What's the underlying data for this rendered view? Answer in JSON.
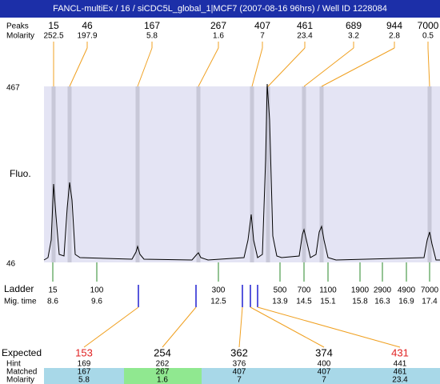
{
  "header": {
    "title": "FANCL-multiEx / 16 / siCDC5L_global_1|MCF7 (2007-08-16 96hrs) / Well ID 1228084"
  },
  "peaks": {
    "label": "Peaks",
    "molarity_label": "Molarity",
    "sizes": [
      "15",
      "46",
      "167",
      "267",
      "407",
      "461",
      "689",
      "944",
      "7000"
    ],
    "molarity": [
      "252.5",
      "197.9",
      "5.8",
      "1.6",
      "7",
      "23.4",
      "3.2",
      "2.8",
      "0.5"
    ]
  },
  "plot": {
    "y_label": "Fluo.",
    "y_top": "467",
    "y_bottom": "46"
  },
  "ladder": {
    "label": "Ladder",
    "time_label": "Mig. time",
    "sizes": [
      "15",
      "100",
      "300",
      "500",
      "700",
      "1100",
      "1900",
      "2900",
      "4900",
      "7000"
    ],
    "times": [
      "8.6",
      "9.6",
      "12.5",
      "13.9",
      "14.5",
      "15.1",
      "15.8",
      "16.3",
      "16.9",
      "17.4"
    ]
  },
  "table": {
    "row_labels": [
      "Expected",
      "Hint",
      "Matched",
      "Molarity"
    ],
    "columns": [
      {
        "expected": "153",
        "hint": "169",
        "matched": "167",
        "molarity": "5.8"
      },
      {
        "expected": "254",
        "hint": "262",
        "matched": "267",
        "molarity": "1.6"
      },
      {
        "expected": "362",
        "hint": "376",
        "matched": "407",
        "molarity": "7"
      },
      {
        "expected": "374",
        "hint": "400",
        "matched": "407",
        "molarity": "7"
      },
      {
        "expected": "431",
        "hint": "441",
        "matched": "461",
        "molarity": "23.4"
      }
    ]
  }
}
